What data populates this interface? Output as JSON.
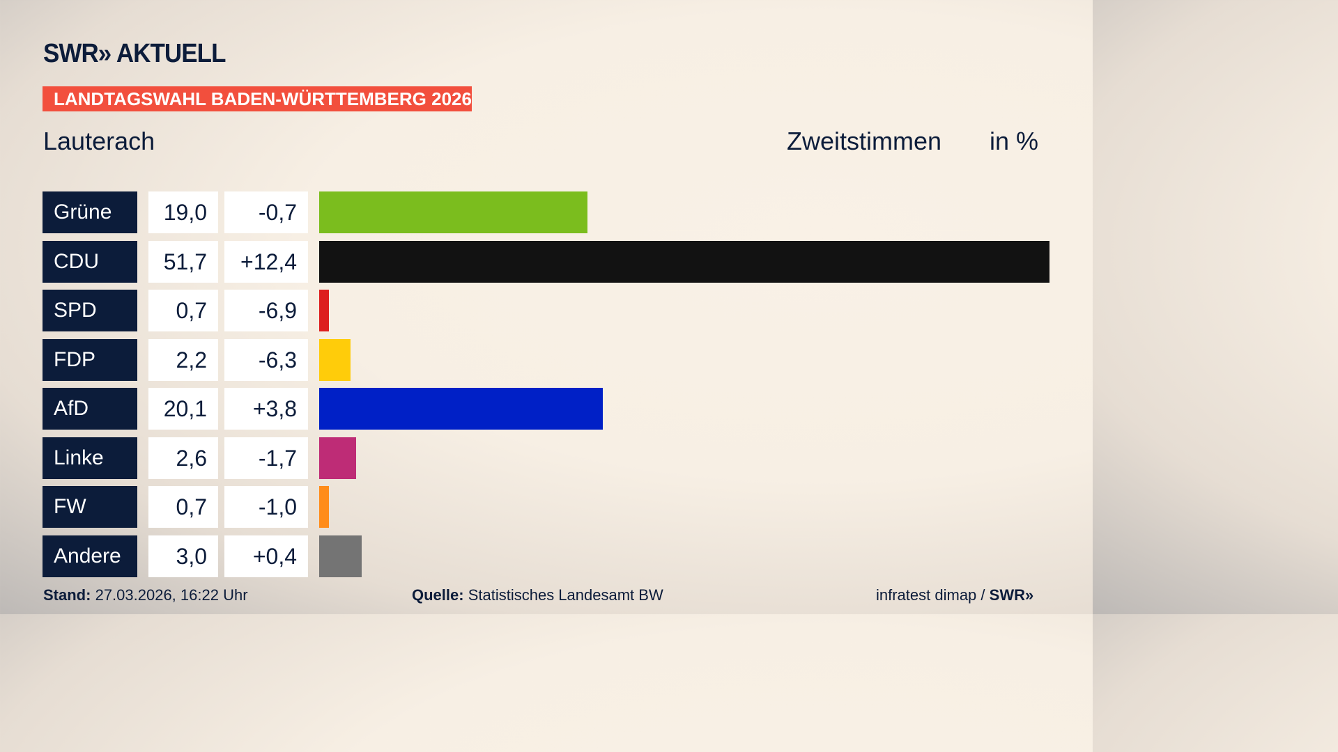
{
  "header": {
    "logo": "SWR» AKTUELL",
    "banner": "LANDTAGSWAHL BADEN-WÜRTTEMBERG 2026",
    "region": "Lauterach",
    "measure": "Zweitstimmen",
    "unit": "in %"
  },
  "chart_data": {
    "type": "bar",
    "orientation": "horizontal",
    "categories": [
      "Grüne",
      "CDU",
      "SPD",
      "FDP",
      "AfD",
      "Linke",
      "FW",
      "Andere"
    ],
    "values": [
      19.0,
      51.7,
      0.7,
      2.2,
      20.1,
      2.6,
      0.7,
      3.0
    ],
    "values_label": [
      "19,0",
      "51,7",
      "0,7",
      "2,2",
      "20,1",
      "2,6",
      "0,7",
      "3,0"
    ],
    "diff": [
      "-0,7",
      "+12,4",
      "-6,9",
      "-6,3",
      "+3,8",
      "-1,7",
      "-1,0",
      "+0,4"
    ],
    "colors": [
      "#7bbd1e",
      "#121212",
      "#dd1f1f",
      "#ffcc0a",
      "#0020c6",
      "#be2c76",
      "#ff8c1a",
      "#747474"
    ],
    "xlim": [
      0,
      51.7
    ]
  },
  "footer": {
    "stand_label": "Stand:",
    "stand": "27.03.2026, 16:22 Uhr",
    "source_label": "Quelle:",
    "source": "Statistisches Landesamt BW",
    "credit": "infratest dimap / ",
    "credit_logo": "SWR»"
  }
}
